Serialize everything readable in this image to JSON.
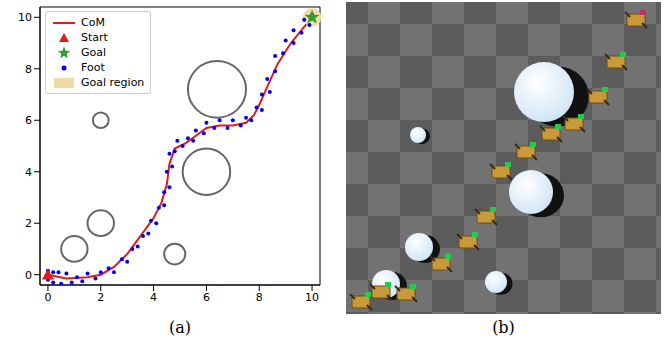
{
  "chart_data": {
    "type": "scatter",
    "xlim": [
      -0.3,
      10.3
    ],
    "ylim": [
      -0.4,
      10.4
    ],
    "xticks": [
      0,
      2,
      4,
      6,
      8,
      10
    ],
    "yticks": [
      0,
      2,
      4,
      6,
      8,
      10
    ],
    "legend": "upper left",
    "series": [
      {
        "name": "CoM",
        "type": "line",
        "color": "#e31a1c",
        "values": [
          [
            0,
            0
          ],
          [
            0.7,
            -0.15
          ],
          [
            1.5,
            -0.1
          ],
          [
            2,
            0
          ],
          [
            2.5,
            0.3
          ],
          [
            3,
            0.8
          ],
          [
            3.5,
            1.5
          ],
          [
            4,
            2.2
          ],
          [
            4.3,
            2.8
          ],
          [
            4.5,
            3.5
          ],
          [
            4.6,
            4.3
          ],
          [
            4.8,
            4.9
          ],
          [
            5.2,
            5.1
          ],
          [
            5.6,
            5.4
          ],
          [
            6,
            5.7
          ],
          [
            6.5,
            5.8
          ],
          [
            7,
            5.8
          ],
          [
            7.5,
            5.9
          ],
          [
            7.8,
            6.2
          ],
          [
            8,
            6.6
          ],
          [
            8.3,
            7.3
          ],
          [
            8.7,
            8.2
          ],
          [
            9.2,
            9
          ],
          [
            9.6,
            9.5
          ],
          [
            10,
            10
          ]
        ]
      },
      {
        "name": "Start",
        "type": "scatter",
        "marker": "triangle",
        "color": "#e31a1c",
        "values": [
          [
            0,
            0
          ]
        ]
      },
      {
        "name": "Goal",
        "type": "scatter",
        "marker": "star",
        "color": "#2ca02c",
        "values": [
          [
            10,
            10
          ]
        ]
      },
      {
        "name": "Foot",
        "type": "scatter",
        "marker": "circle",
        "color": "#0000ff",
        "values": [
          [
            0,
            0.15
          ],
          [
            0,
            -0.2
          ],
          [
            0.2,
            0.1
          ],
          [
            0.2,
            -0.3
          ],
          [
            0.4,
            0.1
          ],
          [
            0.5,
            -0.35
          ],
          [
            0.7,
            0.05
          ],
          [
            0.9,
            -0.3
          ],
          [
            1.1,
            -0.1
          ],
          [
            1.3,
            -0.25
          ],
          [
            1.5,
            0.05
          ],
          [
            1.8,
            -0.15
          ],
          [
            2,
            0.1
          ],
          [
            2.3,
            0.25
          ],
          [
            2.5,
            0.1
          ],
          [
            2.8,
            0.6
          ],
          [
            3,
            0.5
          ],
          [
            3.2,
            1.0
          ],
          [
            3.4,
            1.1
          ],
          [
            3.6,
            1.5
          ],
          [
            3.8,
            1.6
          ],
          [
            3.9,
            2.1
          ],
          [
            4.1,
            2.0
          ],
          [
            4.2,
            2.6
          ],
          [
            4.4,
            2.7
          ],
          [
            4.4,
            3.2
          ],
          [
            4.6,
            3.4
          ],
          [
            4.5,
            4.0
          ],
          [
            4.7,
            4.2
          ],
          [
            4.6,
            4.7
          ],
          [
            4.8,
            4.8
          ],
          [
            4.9,
            5.2
          ],
          [
            5.1,
            5.0
          ],
          [
            5.3,
            5.3
          ],
          [
            5.5,
            5.2
          ],
          [
            5.6,
            5.6
          ],
          [
            5.9,
            5.5
          ],
          [
            6.0,
            5.9
          ],
          [
            6.3,
            5.7
          ],
          [
            6.5,
            6.0
          ],
          [
            6.8,
            5.7
          ],
          [
            7.0,
            6.0
          ],
          [
            7.3,
            5.8
          ],
          [
            7.5,
            6.1
          ],
          [
            7.7,
            6.0
          ],
          [
            7.9,
            6.5
          ],
          [
            8.1,
            6.4
          ],
          [
            8.1,
            7.0
          ],
          [
            8.4,
            7.1
          ],
          [
            8.3,
            7.6
          ],
          [
            8.6,
            7.9
          ],
          [
            8.6,
            8.5
          ],
          [
            8.9,
            8.6
          ],
          [
            9.0,
            9.1
          ],
          [
            9.3,
            9.0
          ],
          [
            9.3,
            9.5
          ],
          [
            9.6,
            9.4
          ],
          [
            9.7,
            9.9
          ],
          [
            9.9,
            9.7
          ],
          [
            10,
            10.1
          ]
        ]
      },
      {
        "name": "Goal region",
        "type": "region",
        "color": "#f3d9a6",
        "values": [
          [
            10,
            10
          ]
        ],
        "radius": 0.35
      }
    ],
    "obstacles": {
      "color": "#666666",
      "circles": [
        {
          "x": 1,
          "y": 1,
          "r": 0.5
        },
        {
          "x": 2,
          "y": 2,
          "r": 0.5
        },
        {
          "x": 2,
          "y": 6,
          "r": 0.3
        },
        {
          "x": 4.8,
          "y": 0.8,
          "r": 0.4
        },
        {
          "x": 6,
          "y": 4,
          "r": 0.9
        },
        {
          "x": 6.4,
          "y": 7.2,
          "r": 1.1
        }
      ]
    }
  },
  "panel_labels": [
    "(a)",
    "(b)"
  ]
}
